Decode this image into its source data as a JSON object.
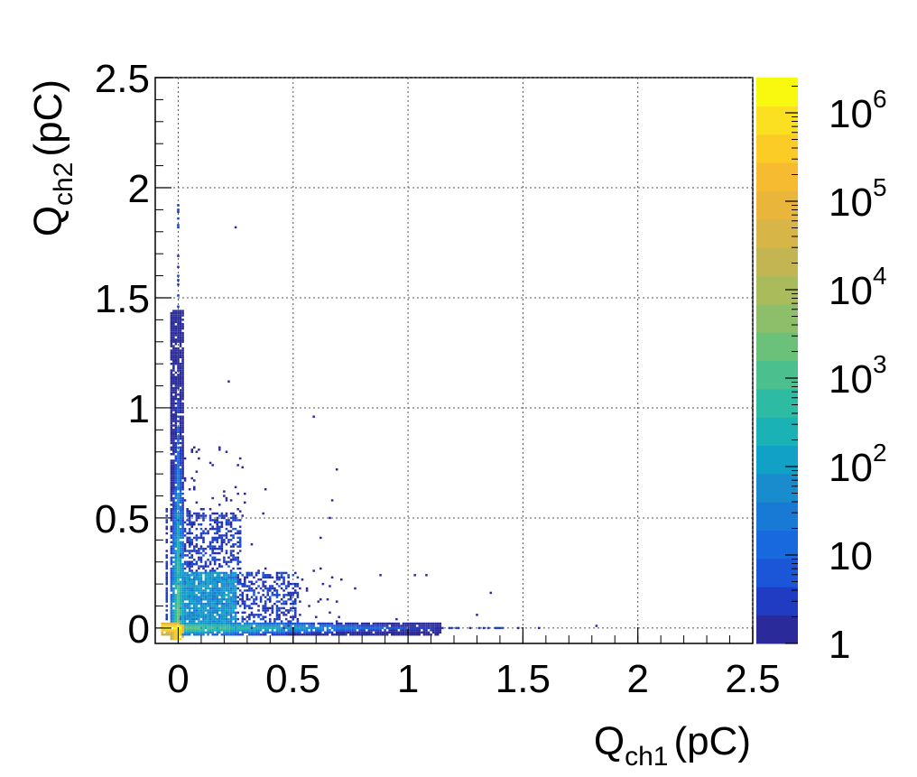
{
  "chart_data": {
    "type": "heatmap",
    "title": "",
    "xlabel": "Q",
    "xlabel_sub": "ch1",
    "xlabel_unit": "(pC)",
    "ylabel": "Q",
    "ylabel_sub": "ch2",
    "ylabel_unit": "(pC)",
    "xlim": [
      -0.1,
      2.5
    ],
    "ylim": [
      -0.07,
      2.5
    ],
    "grid": true,
    "x_ticks": [
      {
        "value": 0,
        "label": "0"
      },
      {
        "value": 0.5,
        "label": "0.5"
      },
      {
        "value": 1,
        "label": "1"
      },
      {
        "value": 1.5,
        "label": "1.5"
      },
      {
        "value": 2,
        "label": "2"
      },
      {
        "value": 2.5,
        "label": "2.5"
      }
    ],
    "y_ticks": [
      {
        "value": 0,
        "label": "0"
      },
      {
        "value": 0.5,
        "label": "0.5"
      },
      {
        "value": 1,
        "label": "1"
      },
      {
        "value": 1.5,
        "label": "1.5"
      },
      {
        "value": 2,
        "label": "2"
      },
      {
        "value": 2.5,
        "label": "2.5"
      }
    ],
    "colorbar": {
      "scale": "log",
      "range": [
        1,
        2500000
      ],
      "ticks": [
        {
          "value": 1,
          "base": "1",
          "exp": ""
        },
        {
          "value": 10,
          "base": "10",
          "exp": ""
        },
        {
          "value": 100,
          "base": "10",
          "exp": "2"
        },
        {
          "value": 1000,
          "base": "10",
          "exp": "3"
        },
        {
          "value": 10000,
          "base": "10",
          "exp": "4"
        },
        {
          "value": 100000,
          "base": "10",
          "exp": "5"
        },
        {
          "value": 1000000,
          "base": "10",
          "exp": "6"
        }
      ],
      "palette": [
        "#2a2a9a",
        "#1f3cc2",
        "#1b55d8",
        "#1868de",
        "#197ad6",
        "#188ccc",
        "#12a1c6",
        "#1bb2b6",
        "#2dbba3",
        "#4bc08e",
        "#6cc17a",
        "#8dbf6a",
        "#a9bb5b",
        "#c3b652",
        "#d8b547",
        "#eab53b",
        "#f6bb30",
        "#fbcc25",
        "#fbe022",
        "#f9f90f"
      ]
    },
    "points_regions": [
      {
        "region": "pedestal peak",
        "x": 0,
        "y": 0,
        "count": 2000000
      },
      {
        "region": "x-axis band",
        "x_range": [
          0,
          1.1
        ],
        "y_range": [
          -0.02,
          0.02
        ],
        "count_range": [
          10,
          10000
        ]
      },
      {
        "region": "y-axis band",
        "x_range": [
          -0.02,
          0.02
        ],
        "y_range": [
          0,
          1.5
        ],
        "count_range": [
          10,
          10000
        ]
      },
      {
        "region": "low-charge box",
        "x_range": [
          0,
          0.26
        ],
        "y_range": [
          0,
          0.26
        ],
        "count_range": [
          10,
          100
        ]
      },
      {
        "region": "mid box",
        "x_range": [
          0,
          0.28
        ],
        "y_range": [
          0.26,
          0.53
        ],
        "count_range": [
          1,
          10
        ]
      },
      {
        "region": "right box",
        "x_range": [
          0.26,
          0.53
        ],
        "y_range": [
          0,
          0.26
        ],
        "count_range": [
          1,
          10
        ]
      }
    ]
  }
}
